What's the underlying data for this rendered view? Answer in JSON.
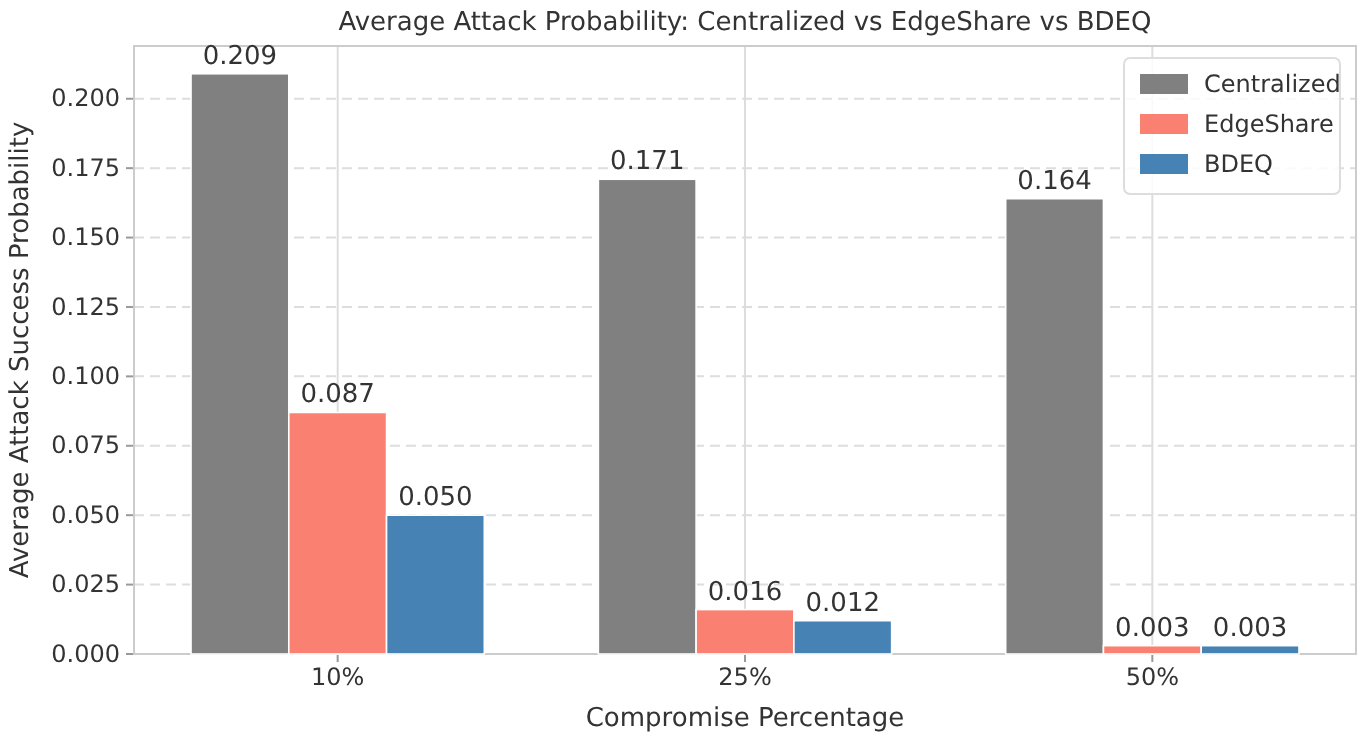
{
  "chart_data": {
    "type": "bar",
    "title": "Average Attack Probability: Centralized vs EdgeShare vs BDEQ",
    "xlabel": "Compromise Percentage",
    "ylabel": "Average Attack Success Probability",
    "categories": [
      "10%",
      "25%",
      "50%"
    ],
    "series": [
      {
        "name": "Centralized",
        "color": "#808080",
        "values": [
          0.209,
          0.171,
          0.164
        ],
        "value_labels": [
          "0.209",
          "0.171",
          "0.164"
        ]
      },
      {
        "name": "EdgeShare",
        "color": "#fa8072",
        "values": [
          0.087,
          0.016,
          0.003
        ],
        "value_labels": [
          "0.087",
          "0.016",
          "0.003"
        ]
      },
      {
        "name": "BDEQ",
        "color": "#4682b4",
        "values": [
          0.05,
          0.012,
          0.003
        ],
        "value_labels": [
          "0.050",
          "0.012",
          "0.003"
        ]
      }
    ],
    "ylim": [
      0,
      0.219
    ],
    "yticks": [
      {
        "value": 0,
        "label": "0.000"
      },
      {
        "value": 0.025,
        "label": "0.025"
      },
      {
        "value": 0.05,
        "label": "0.050"
      },
      {
        "value": 0.075,
        "label": "0.075"
      },
      {
        "value": 0.1,
        "label": "0.100"
      },
      {
        "value": 0.125,
        "label": "0.125"
      },
      {
        "value": 0.15,
        "label": "0.150"
      },
      {
        "value": 0.175,
        "label": "0.175"
      },
      {
        "value": 0.2,
        "label": "0.200"
      }
    ],
    "grid": true,
    "legend": "top right"
  }
}
